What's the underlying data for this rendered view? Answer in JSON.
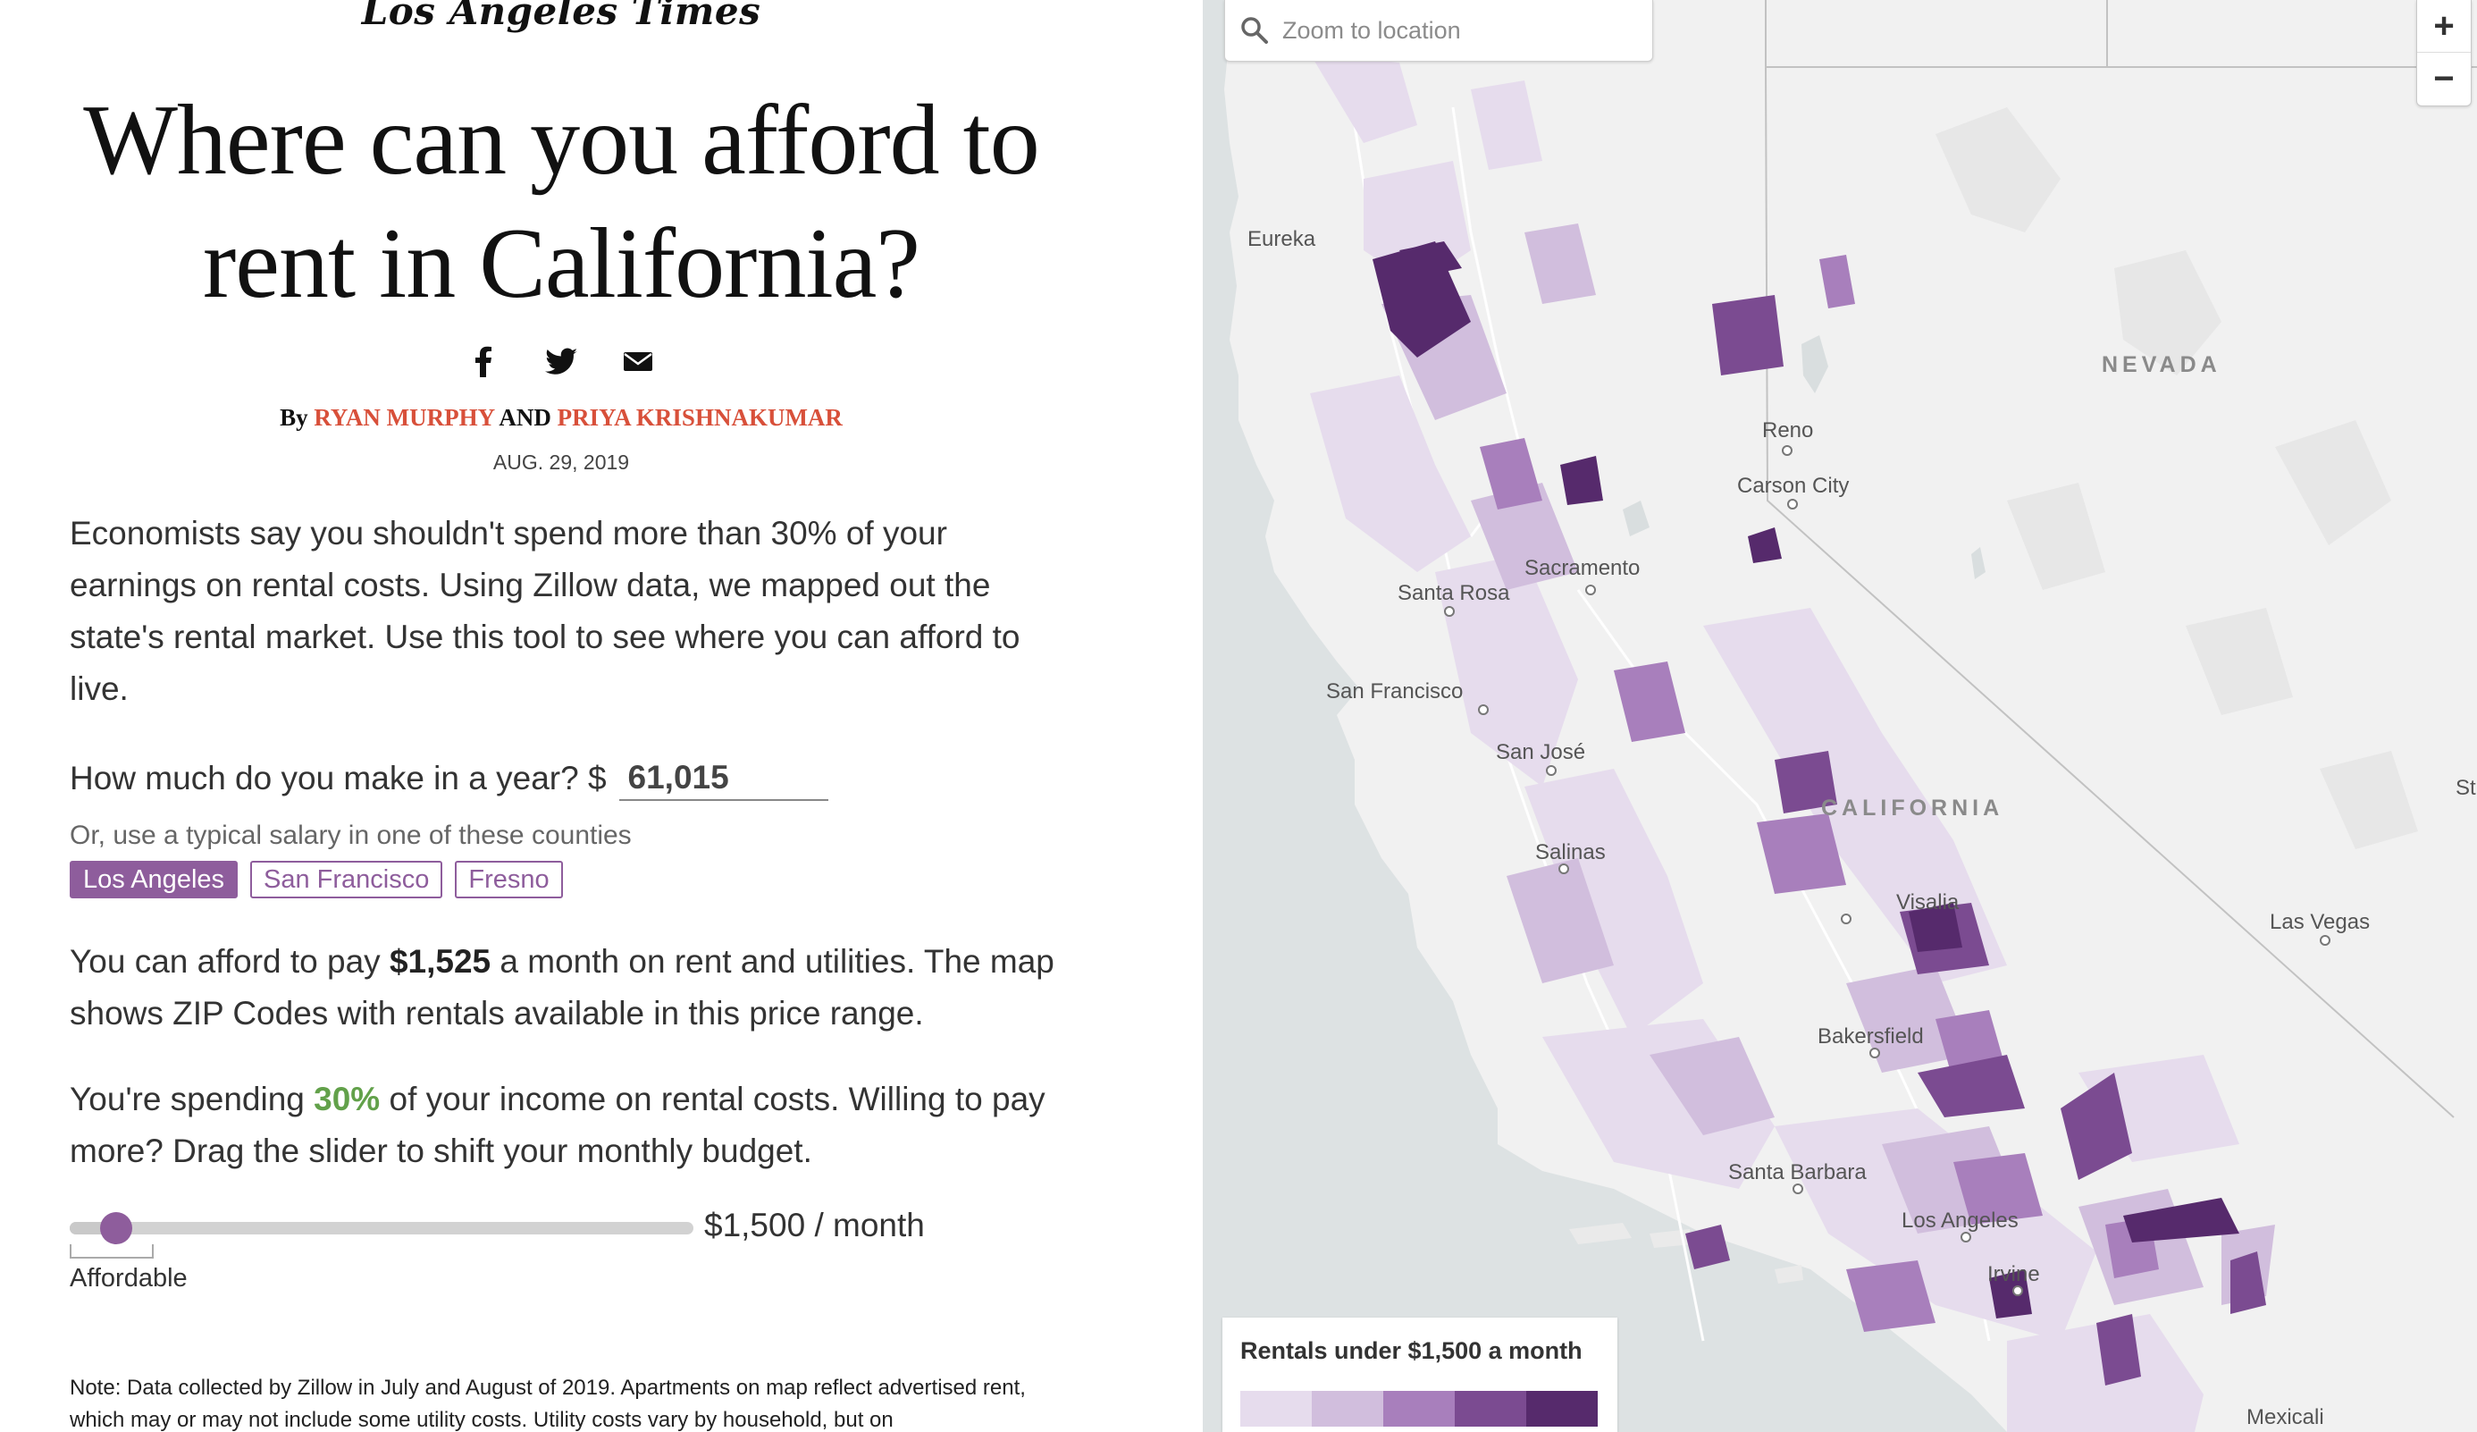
{
  "article": {
    "logo": "Los Angeles Times",
    "headline": "Where can you afford to rent in California?",
    "share": {
      "facebook_icon": "facebook-icon",
      "twitter_icon": "twitter-icon",
      "email_icon": "email-icon"
    },
    "byline": {
      "prefix": "By",
      "author1": "RYAN MURPHY",
      "joiner": "AND",
      "author2": "PRIYA KRISHNAKUMAR"
    },
    "date": "AUG. 29, 2019",
    "intro": "Economists say you shouldn't spend more than 30% of your earnings on rental costs. Using Zillow data, we mapped out the state's rental market. Use this tool to see where you can afford to live.",
    "salary_question": "How much do you make in a year? $",
    "salary_value": "61,015",
    "counties_prompt": "Or, use a typical salary in one of these counties",
    "counties": [
      {
        "label": "Los Angeles",
        "active": true
      },
      {
        "label": "San Francisco",
        "active": false
      },
      {
        "label": "Fresno",
        "active": false
      }
    ],
    "afford_prefix": "You can afford to pay",
    "afford_amount": "$1,525",
    "afford_suffix": "a month on rent and utilities. The map shows ZIP Codes with rentals available in this price range.",
    "spending_prefix": "You're spending",
    "spending_pct": "30%",
    "spending_suffix": "of your income on rental costs. Willing to pay more? Drag the slider to shift your monthly budget.",
    "slider": {
      "value": "$1,500 / month",
      "position_fraction": 0.075,
      "label": "Affordable"
    },
    "note": "Note: Data collected by Zillow in July and August of 2019. Apartments on map reflect advertised rent, which may or may not include some utility costs. Utility costs vary by household, but on"
  },
  "map": {
    "search_placeholder": "Zoom to location",
    "search_icon": "search-icon",
    "zoom_in": "+",
    "zoom_out": "−",
    "labels": {
      "nevada": "NEVADA",
      "california": "CALIFORNIA",
      "eureka": "Eureka",
      "reno": "Reno",
      "carson_city": "Carson City",
      "sacramento": "Sacramento",
      "santa_rosa": "Santa Rosa",
      "san_francisco": "San Francisco",
      "san_jose": "San José",
      "salinas": "Salinas",
      "visalia": "Visalia",
      "las_vegas": "Las Vegas",
      "bakersfield": "Bakersfield",
      "santa_barbara": "Santa Barbara",
      "los_angeles": "Los Angeles",
      "irvine": "Irvine",
      "mexicali": "Mexicali",
      "st_fragment": "St"
    },
    "legend": {
      "title": "Rentals under $1,500 a month",
      "colors": [
        "#e6dced",
        "#d1bedd",
        "#a87fbc",
        "#7b4b91",
        "#562a6c"
      ]
    },
    "colors": {
      "land": "#f1f1f1",
      "water": "#d9dedf",
      "accent": "#8e5d9c"
    }
  }
}
